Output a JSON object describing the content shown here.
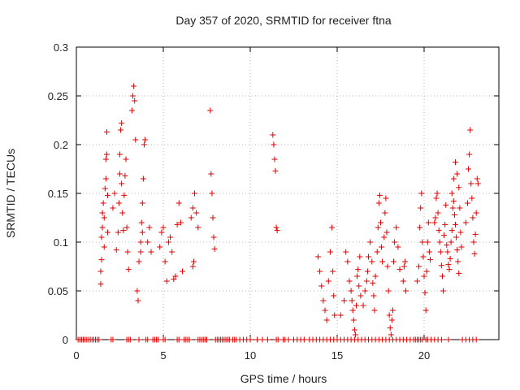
{
  "chart_data": {
    "type": "scatter",
    "title": "Day 357 of 2020, SRMTID for receiver ftna",
    "xlabel": "GPS time / hours",
    "ylabel": "SRMTID / TECUs",
    "xlim": [
      0,
      24.3
    ],
    "ylim": [
      0,
      0.3
    ],
    "x_ticks": [
      0,
      5,
      10,
      15,
      20
    ],
    "y_ticks": [
      0,
      0.05,
      0.1,
      0.15,
      0.2,
      0.25,
      0.3
    ],
    "x_tick_labels": [
      "0",
      "5",
      "10",
      "15",
      "20"
    ],
    "y_tick_labels": [
      "0",
      "0.05",
      "0.1",
      "0.15",
      "0.2",
      "0.25",
      "0.3"
    ],
    "grid": true,
    "marker": "+",
    "marker_color": "#e00000",
    "series": [
      {
        "name": "SRMTID",
        "points": [
          [
            1.4,
            0.057
          ],
          [
            1.4,
            0.07
          ],
          [
            1.45,
            0.082
          ],
          [
            1.45,
            0.105
          ],
          [
            1.5,
            0.115
          ],
          [
            1.5,
            0.13
          ],
          [
            1.55,
            0.14
          ],
          [
            1.6,
            0.095
          ],
          [
            1.6,
            0.125
          ],
          [
            1.65,
            0.155
          ],
          [
            1.7,
            0.165
          ],
          [
            1.7,
            0.185
          ],
          [
            1.75,
            0.19
          ],
          [
            1.75,
            0.213
          ],
          [
            1.8,
            0.148
          ],
          [
            1.8,
            0.11
          ],
          [
            2.1,
            0.135
          ],
          [
            2.2,
            0.15
          ],
          [
            2.3,
            0.092
          ],
          [
            2.4,
            0.11
          ],
          [
            2.45,
            0.14
          ],
          [
            2.5,
            0.17
          ],
          [
            2.5,
            0.19
          ],
          [
            2.55,
            0.215
          ],
          [
            2.6,
            0.222
          ],
          [
            2.6,
            0.16
          ],
          [
            2.65,
            0.13
          ],
          [
            2.7,
            0.112
          ],
          [
            2.75,
            0.148
          ],
          [
            2.8,
            0.168
          ],
          [
            2.85,
            0.185
          ],
          [
            2.9,
            0.115
          ],
          [
            2.95,
            0.09
          ],
          [
            3.0,
            0.072
          ],
          [
            3.2,
            0.235
          ],
          [
            3.25,
            0.25
          ],
          [
            3.3,
            0.26
          ],
          [
            3.35,
            0.245
          ],
          [
            3.4,
            0.205
          ],
          [
            3.5,
            0.05
          ],
          [
            3.55,
            0.04
          ],
          [
            3.6,
            0.08
          ],
          [
            3.7,
            0.1
          ],
          [
            3.75,
            0.12
          ],
          [
            3.8,
            0.14
          ],
          [
            3.85,
            0.165
          ],
          [
            3.9,
            0.2
          ],
          [
            3.95,
            0.205
          ],
          [
            3.7,
            0.09
          ],
          [
            3.8,
            0.11
          ],
          [
            4.1,
            0.1
          ],
          [
            4.2,
            0.115
          ],
          [
            4.3,
            0.09
          ],
          [
            4.8,
            0.095
          ],
          [
            4.9,
            0.11
          ],
          [
            5.0,
            0.115
          ],
          [
            5.1,
            0.08
          ],
          [
            5.2,
            0.06
          ],
          [
            5.3,
            0.1
          ],
          [
            5.4,
            0.105
          ],
          [
            5.5,
            0.09
          ],
          [
            5.6,
            0.062
          ],
          [
            5.7,
            0.065
          ],
          [
            5.8,
            0.118
          ],
          [
            5.9,
            0.14
          ],
          [
            6.0,
            0.12
          ],
          [
            6.1,
            0.07
          ],
          [
            6.6,
            0.125
          ],
          [
            6.7,
            0.135
          ],
          [
            6.8,
            0.15
          ],
          [
            6.9,
            0.13
          ],
          [
            6.75,
            0.08
          ],
          [
            6.7,
            0.075
          ],
          [
            7.0,
            0.115
          ],
          [
            7.7,
            0.235
          ],
          [
            7.75,
            0.17
          ],
          [
            7.8,
            0.15
          ],
          [
            7.85,
            0.125
          ],
          [
            7.9,
            0.105
          ],
          [
            7.95,
            0.093
          ],
          [
            11.3,
            0.21
          ],
          [
            11.35,
            0.2
          ],
          [
            11.4,
            0.185
          ],
          [
            11.45,
            0.173
          ],
          [
            11.5,
            0.115
          ],
          [
            11.55,
            0.112
          ],
          [
            13.9,
            0.085
          ],
          [
            14.0,
            0.07
          ],
          [
            14.1,
            0.055
          ],
          [
            14.2,
            0.04
          ],
          [
            14.3,
            0.03
          ],
          [
            14.4,
            0.02
          ],
          [
            14.5,
            0.06
          ],
          [
            14.6,
            0.09
          ],
          [
            14.7,
            0.115
          ],
          [
            14.75,
            0.07
          ],
          [
            14.8,
            0.045
          ],
          [
            14.85,
            0.025
          ],
          [
            15.2,
            0.025
          ],
          [
            15.4,
            0.04
          ],
          [
            15.5,
            0.09
          ],
          [
            15.6,
            0.08
          ],
          [
            15.7,
            0.06
          ],
          [
            15.8,
            0.05
          ],
          [
            15.85,
            0.04
          ],
          [
            15.9,
            0.03
          ],
          [
            15.95,
            0.02
          ],
          [
            16.0,
            0.01
          ],
          [
            16.05,
            0.005
          ],
          [
            16.1,
            0.035
          ],
          [
            16.15,
            0.065
          ],
          [
            16.2,
            0.072
          ],
          [
            16.25,
            0.055
          ],
          [
            16.3,
            0.085
          ],
          [
            16.35,
            0.045
          ],
          [
            16.5,
            0.035
          ],
          [
            16.6,
            0.05
          ],
          [
            16.7,
            0.06
          ],
          [
            16.75,
            0.07
          ],
          [
            16.8,
            0.085
          ],
          [
            16.9,
            0.1
          ],
          [
            17.0,
            0.08
          ],
          [
            17.05,
            0.058
          ],
          [
            17.1,
            0.045
          ],
          [
            17.15,
            0.03
          ],
          [
            17.2,
            0.065
          ],
          [
            17.3,
            0.09
          ],
          [
            17.35,
            0.115
          ],
          [
            17.4,
            0.14
          ],
          [
            17.45,
            0.148
          ],
          [
            17.5,
            0.12
          ],
          [
            17.55,
            0.095
          ],
          [
            17.6,
            0.08
          ],
          [
            17.7,
            0.105
          ],
          [
            17.75,
            0.13
          ],
          [
            17.8,
            0.145
          ],
          [
            17.85,
            0.11
          ],
          [
            17.9,
            0.075
          ],
          [
            17.95,
            0.05
          ],
          [
            18.0,
            0.025
          ],
          [
            18.05,
            0.012
          ],
          [
            18.1,
            0.005
          ],
          [
            18.15,
            0.02
          ],
          [
            18.2,
            0.03
          ],
          [
            18.25,
            0.08
          ],
          [
            18.3,
            0.1
          ],
          [
            18.4,
            0.115
          ],
          [
            18.5,
            0.095
          ],
          [
            18.6,
            0.072
          ],
          [
            18.8,
            0.06
          ],
          [
            18.85,
            0.075
          ],
          [
            18.9,
            0.08
          ],
          [
            18.95,
            0.05
          ],
          [
            19.6,
            0.06
          ],
          [
            19.7,
            0.075
          ],
          [
            19.75,
            0.115
          ],
          [
            19.8,
            0.135
          ],
          [
            19.85,
            0.15
          ],
          [
            19.9,
            0.1
          ],
          [
            19.95,
            0.085
          ],
          [
            20.0,
            0.065
          ],
          [
            20.05,
            0.048
          ],
          [
            20.1,
            0.03
          ],
          [
            20.15,
            0.07
          ],
          [
            20.2,
            0.1
          ],
          [
            20.25,
            0.12
          ],
          [
            20.3,
            0.09
          ],
          [
            20.35,
            0.082
          ],
          [
            20.6,
            0.12
          ],
          [
            20.65,
            0.125
          ],
          [
            20.7,
            0.145
          ],
          [
            20.75,
            0.15
          ],
          [
            20.8,
            0.13
          ],
          [
            20.85,
            0.112
          ],
          [
            20.9,
            0.1
          ],
          [
            20.95,
            0.09
          ],
          [
            21.0,
            0.076
          ],
          [
            21.05,
            0.065
          ],
          [
            21.1,
            0.05
          ],
          [
            21.15,
            0.107
          ],
          [
            21.2,
            0.118
          ],
          [
            21.25,
            0.138
          ],
          [
            21.3,
            0.097
          ],
          [
            21.35,
            0.09
          ],
          [
            21.4,
            0.077
          ],
          [
            21.45,
            0.072
          ],
          [
            21.5,
            0.083
          ],
          [
            21.55,
            0.1
          ],
          [
            21.6,
            0.112
          ],
          [
            21.65,
            0.135
          ],
          [
            21.7,
            0.142
          ],
          [
            21.75,
            0.128
          ],
          [
            21.8,
            0.118
          ],
          [
            21.85,
            0.105
          ],
          [
            21.9,
            0.092
          ],
          [
            21.95,
            0.08
          ],
          [
            22.0,
            0.068
          ],
          [
            21.6,
            0.15
          ],
          [
            21.7,
            0.165
          ],
          [
            21.8,
            0.182
          ],
          [
            21.9,
            0.17
          ],
          [
            22.0,
            0.156
          ],
          [
            22.05,
            0.135
          ],
          [
            22.1,
            0.11
          ],
          [
            22.15,
            0.095
          ],
          [
            22.4,
            0.12
          ],
          [
            22.5,
            0.14
          ],
          [
            22.55,
            0.175
          ],
          [
            22.6,
            0.19
          ],
          [
            22.65,
            0.215
          ],
          [
            22.7,
            0.16
          ],
          [
            22.75,
            0.145
          ],
          [
            22.8,
            0.125
          ],
          [
            22.85,
            0.1
          ],
          [
            22.9,
            0.088
          ],
          [
            22.95,
            0.108
          ],
          [
            23.0,
            0.13
          ],
          [
            23.05,
            0.165
          ],
          [
            23.1,
            0.16
          ]
        ],
        "zero_baseline_points": [
          0.1,
          0.2,
          0.3,
          0.4,
          0.5,
          0.6,
          0.7,
          0.8,
          0.9,
          1.0,
          1.1,
          1.2,
          1.3,
          2.0,
          2.1,
          2.9,
          3.0,
          3.1,
          3.6,
          4.0,
          4.1,
          4.4,
          4.5,
          4.6,
          4.7,
          5.0,
          5.1,
          5.8,
          5.9,
          6.2,
          6.3,
          6.4,
          6.5,
          7.0,
          7.1,
          7.2,
          7.3,
          7.4,
          7.5,
          8.0,
          8.1,
          8.2,
          8.3,
          8.4,
          8.5,
          8.6,
          8.7,
          8.8,
          9.0,
          9.1,
          9.2,
          9.4,
          9.6,
          9.8,
          10.0,
          10.4,
          10.7,
          11.0,
          11.5,
          11.6,
          11.9,
          12.0,
          12.2,
          12.5,
          12.7,
          12.9,
          13.1,
          13.4,
          13.6,
          13.8,
          14.0,
          14.2,
          14.4,
          14.6,
          14.8,
          15.0,
          15.2,
          15.4,
          15.6,
          15.8,
          16.0,
          16.2,
          16.4,
          16.6,
          16.8,
          17.0,
          17.2,
          17.4,
          17.6,
          17.8,
          18.0,
          18.2,
          18.4,
          18.6,
          18.8,
          19.0,
          19.2,
          19.4,
          19.5,
          19.6,
          19.7,
          19.8,
          19.9,
          20.1,
          20.2,
          20.4,
          20.6,
          20.8,
          21.0,
          21.4,
          22.2,
          22.4,
          22.6,
          22.8,
          23.0
        ]
      }
    ]
  }
}
